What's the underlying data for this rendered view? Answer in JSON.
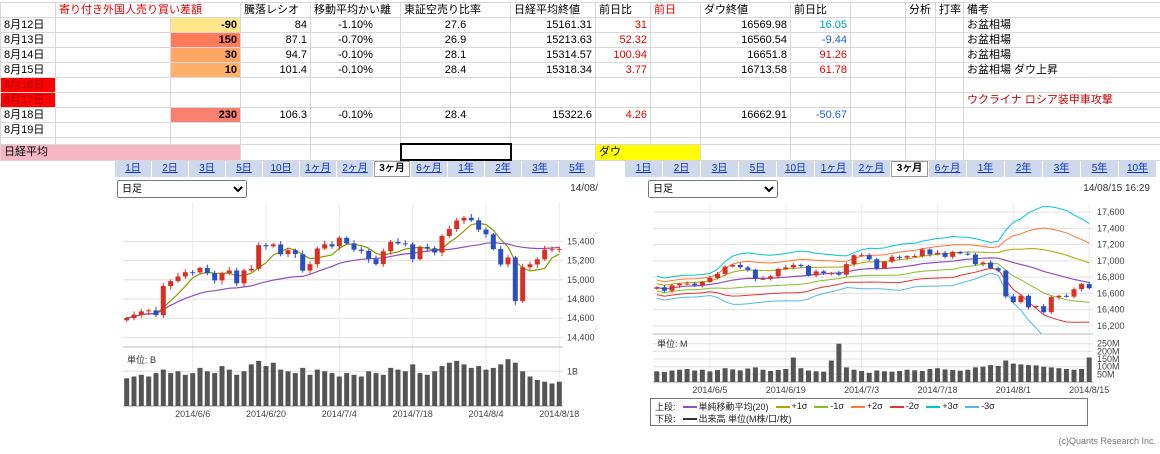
{
  "table": {
    "headers": {
      "diff": "寄り付き外国人売り買い差額",
      "ratio": "騰落レシオ",
      "ma_dev": "移動平均かい離",
      "short_ratio": "東証空売り比率",
      "nikkei_close": "日経平均終値",
      "nikkei_chg": "前日比",
      "prev": "前日",
      "dow_close": "ダウ終値",
      "dow_chg": "前日比",
      "analysis": "分析",
      "batting": "打率",
      "note": "備考"
    },
    "header_colors": {
      "diff": "#e00000",
      "prev": "#e00000"
    },
    "rows": [
      {
        "date": "8月12日",
        "diff": "-90",
        "diff_bg": "#FFE88C",
        "ratio": "84",
        "ma_dev": "-1.10%",
        "short_ratio": "27.6",
        "nikkei_close": "15161.31",
        "nikkei_chg": "31",
        "nikkei_chg_color": "#e00000",
        "dow_close": "16569.98",
        "dow_chg": "16.05",
        "dow_chg_color": "#00a0a0",
        "note": "お盆相場"
      },
      {
        "date": "8月13日",
        "diff": "150",
        "diff_bg": "#FF7A58",
        "ratio": "87.1",
        "ma_dev": "-0.70%",
        "short_ratio": "26.9",
        "nikkei_close": "15213.63",
        "nikkei_chg": "52.32",
        "nikkei_chg_color": "#e00000",
        "dow_close": "16560.54",
        "dow_chg": "-9.44",
        "dow_chg_color": "#2060d0",
        "note": "お盆相場"
      },
      {
        "date": "8月14日",
        "diff": "30",
        "diff_bg": "#FFA565",
        "ratio": "94.7",
        "ma_dev": "-0.10%",
        "short_ratio": "28.1",
        "nikkei_close": "15314.57",
        "nikkei_chg": "100.94",
        "nikkei_chg_color": "#e00000",
        "dow_close": "16651.8",
        "dow_chg": "91.26",
        "dow_chg_color": "#e00000",
        "note": "お盆相場"
      },
      {
        "date": "8月15日",
        "diff": "10",
        "diff_bg": "#FFB169",
        "ratio": "101.4",
        "ma_dev": "-0.10%",
        "short_ratio": "28.4",
        "nikkei_close": "15318.34",
        "nikkei_chg": "3.77",
        "nikkei_chg_color": "#e00000",
        "dow_close": "16713.58",
        "dow_chg": "61.78",
        "dow_chg_color": "#e00000",
        "note": "お盆相場 ダウ上昇"
      },
      {
        "date": "8月16日",
        "date_bg": "#FF0000",
        "date_color": "#a00000"
      },
      {
        "date": "8月17日",
        "date_bg": "#FF0000",
        "date_color": "#a00000",
        "note": "ウクライナ ロシア装甲車攻撃",
        "note_color": "#d00000"
      },
      {
        "date": "8月18日",
        "diff": "230",
        "diff_bg": "#F98070",
        "ratio": "106.3",
        "ma_dev": "-0.10%",
        "short_ratio": "28.4",
        "nikkei_close": "15322.6",
        "nikkei_chg": "4.26",
        "nikkei_chg_color": "#e00000",
        "dow_close": "16662.91",
        "dow_chg": "-50.67",
        "dow_chg_color": "#2060d0",
        "note": ""
      },
      {
        "date": "8月19日"
      }
    ],
    "summary_row": {
      "nikkei_label": "日経平均",
      "nikkei_label_bg": "#F7B6C4",
      "dow_label": "ダウ",
      "dow_label_bg": "#FFFF00"
    }
  },
  "tabs": {
    "left": [
      "1日",
      "2日",
      "3日",
      "5日",
      "10日",
      "1ヶ月",
      "2ヶ月",
      "3ヶ月",
      "6ヶ月",
      "1年",
      "2年",
      "3年",
      "5年"
    ],
    "right": [
      "1日",
      "2日",
      "3日",
      "5日",
      "10日",
      "1ヶ月",
      "2ヶ月",
      "3ヶ月",
      "6ヶ月",
      "1年",
      "2年",
      "3年",
      "5年",
      "10年"
    ],
    "active": "3ヶ月"
  },
  "charts": {
    "left": {
      "type_select": "日足",
      "timestamp": "14/08/"
    },
    "right": {
      "type_select": "日足",
      "timestamp": "14/08/15 16:29",
      "copyright": "(c)Quants Research Inc."
    }
  },
  "legend": {
    "upper_label": "上段:",
    "upper_items": [
      {
        "label": "単純移動平均(20)",
        "color": "#8F4FBF"
      },
      {
        "label": "+1σ",
        "color": "#A8A800"
      },
      {
        "label": "-1σ",
        "color": "#86BE2A"
      },
      {
        "label": "+2σ",
        "color": "#FF7733"
      },
      {
        "label": "-2σ",
        "color": "#E53333"
      },
      {
        "label": "+3σ",
        "color": "#00C8C8"
      },
      {
        "label": "-3σ",
        "color": "#55B8E8"
      }
    ],
    "lower_label": "下段:",
    "lower_items": [
      {
        "label": "出来高 単位(M株/口/枚)",
        "color": "#333333"
      }
    ]
  },
  "chart_data": [
    {
      "type": "candlestick",
      "name": "nikkei-daily-3month",
      "volume_unit": "単位: B",
      "ylim": [
        14300,
        15800
      ],
      "vol_max": 1.5,
      "up_color": "#D93025",
      "down_color": "#2A4FC0",
      "y_ticks": [
        {
          "v": 15400,
          "label": "15,400"
        },
        {
          "v": 15200,
          "label": "15,200"
        },
        {
          "v": 15000,
          "label": "15,000"
        },
        {
          "v": 14800,
          "label": "14,800"
        },
        {
          "v": 14600,
          "label": "14,600"
        },
        {
          "v": 14400,
          "label": "14,400"
        }
      ],
      "vol_ticks": [
        {
          "v": 1,
          "label": "1B"
        }
      ],
      "x_ticks": [
        {
          "i": 9,
          "label": "2014/6/6"
        },
        {
          "i": 19,
          "label": "2014/6/20"
        },
        {
          "i": 29,
          "label": "2014/7/4"
        },
        {
          "i": 39,
          "label": "2014/7/18"
        },
        {
          "i": 49,
          "label": "2014/8/4"
        },
        {
          "i": 59,
          "label": "2014/8/18"
        }
      ],
      "mas": [
        {
          "period": 5,
          "color": "#8A9A00"
        },
        {
          "period": 25,
          "color": "#8F4FBF"
        }
      ],
      "closes": [
        14602,
        14636,
        14671,
        14681,
        14632,
        14935,
        14986,
        15034,
        15079,
        15077,
        15124,
        15069,
        14994,
        15069,
        15097,
        14964,
        15098,
        15115,
        15361,
        15349,
        15369,
        15266,
        15308,
        15267,
        15095,
        15162,
        15326,
        15370,
        15348,
        15437,
        15379,
        15314,
        15302,
        15216,
        15164,
        15297,
        15395,
        15379,
        15370,
        15215,
        15343,
        15328,
        15284,
        15457,
        15529,
        15618,
        15646,
        15620,
        15523,
        15474,
        15320,
        15160,
        15232,
        14778,
        15131,
        15161,
        15214,
        15315,
        15318,
        15323
      ],
      "volumes": [
        0.8,
        0.85,
        0.9,
        0.85,
        0.95,
        1.05,
        0.95,
        1.0,
        0.9,
        0.95,
        1.1,
        1.0,
        0.95,
        1.15,
        1.05,
        0.9,
        1.0,
        1.2,
        1.3,
        1.15,
        1.25,
        1.05,
        1.0,
        0.95,
        1.1,
        0.9,
        1.05,
        1.0,
        0.95,
        0.85,
        0.95,
        0.9,
        0.85,
        1.0,
        0.95,
        0.9,
        1.1,
        1.05,
        1.0,
        1.2,
        0.95,
        0.9,
        1.0,
        1.15,
        1.25,
        1.3,
        1.2,
        1.1,
        1.15,
        1.05,
        1.1,
        1.2,
        1.35,
        1.25,
        1.0,
        0.85,
        0.75,
        0.7,
        0.65,
        0.7
      ]
    },
    {
      "type": "candlestick_bollinger",
      "name": "dow-daily-3month",
      "volume_unit": "単位: M",
      "ylim": [
        16100,
        17700
      ],
      "vol_max": 287,
      "up_color": "#D93025",
      "down_color": "#2A4FC0",
      "y_ticks": [
        {
          "v": 17600,
          "label": "17,600"
        },
        {
          "v": 17400,
          "label": "17,400"
        },
        {
          "v": 17200,
          "label": "17,200"
        },
        {
          "v": 17000,
          "label": "17,000"
        },
        {
          "v": 16800,
          "label": "16,800"
        },
        {
          "v": 16600,
          "label": "16,600"
        },
        {
          "v": 16400,
          "label": "16,400"
        },
        {
          "v": 16200,
          "label": "16,200"
        }
      ],
      "vol_ticks": [
        {
          "v": 250,
          "label": "250M"
        },
        {
          "v": 200,
          "label": "200M"
        },
        {
          "v": 150,
          "label": "150M"
        },
        {
          "v": 100,
          "label": "100M"
        },
        {
          "v": 50,
          "label": "50M"
        }
      ],
      "x_ticks": [
        {
          "i": 7,
          "label": "2014/6/5"
        },
        {
          "i": 17,
          "label": "2014/6/19"
        },
        {
          "i": 27,
          "label": "2014/7/3"
        },
        {
          "i": 37,
          "label": "2014/7/18"
        },
        {
          "i": 47,
          "label": "2014/8/1"
        },
        {
          "i": 57,
          "label": "2014/8/15"
        }
      ],
      "bollinger": {
        "period": 20,
        "ma_color": "#8F4FBF",
        "plus_colors": [
          "#A8A800",
          "#FF7733",
          "#00C8C8"
        ],
        "minus_colors": [
          "#86BE2A",
          "#E53333",
          "#55B8E8"
        ]
      },
      "closes": [
        16675,
        16633,
        16698,
        16717,
        16720,
        16700,
        16740,
        16790,
        16840,
        16930,
        16950,
        16920,
        16890,
        16780,
        16780,
        16810,
        16900,
        16920,
        16950,
        16940,
        16820,
        16870,
        16850,
        16850,
        16830,
        16960,
        17070,
        17070,
        17020,
        16910,
        16990,
        17050,
        17040,
        17060,
        17060,
        17140,
        17080,
        17100,
        17050,
        17110,
        17090,
        17080,
        16960,
        16980,
        16910,
        16880,
        16563,
        16493,
        16570,
        16429,
        16443,
        16368,
        16554,
        16570,
        16561,
        16652,
        16714,
        16663
      ],
      "volumes": [
        70,
        65,
        75,
        80,
        85,
        75,
        80,
        70,
        78,
        90,
        82,
        76,
        88,
        95,
        80,
        72,
        78,
        85,
        160,
        90,
        75,
        70,
        68,
        140,
        250,
        95,
        80,
        72,
        60,
        75,
        70,
        68,
        72,
        80,
        76,
        72,
        85,
        90,
        82,
        78,
        74,
        80,
        95,
        100,
        110,
        105,
        140,
        120,
        115,
        110,
        108,
        100,
        95,
        90,
        85,
        80,
        85,
        160
      ]
    }
  ]
}
